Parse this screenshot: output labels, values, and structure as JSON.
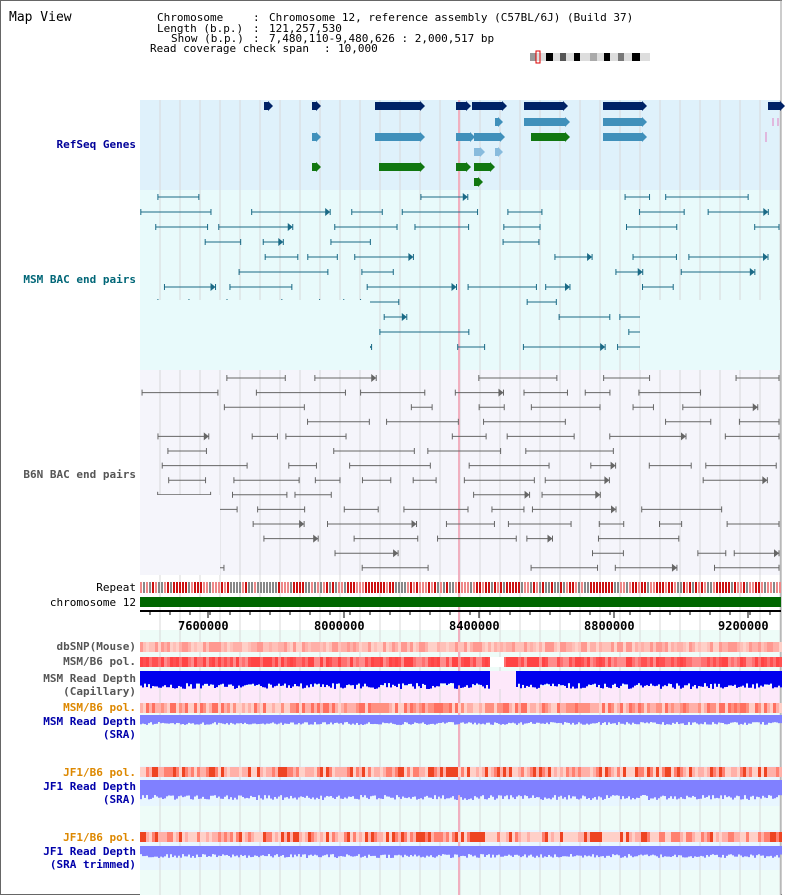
{
  "title": "Map View",
  "info": {
    "chromosome_label": "Chromosome",
    "chromosome_value": "Chromosome 12, reference assembly (C57BL/6J) (Build 37)",
    "length_label": "Length (b.p.)",
    "length_value": "121,257,530",
    "show_label": "Show (b.p.)",
    "show_value": "7,480,110-9,480,626 : 2,000,517 bp",
    "coverage_label": "Read coverage check span",
    "coverage_value": "10,000"
  },
  "tracks": {
    "refseq": "RefSeq Genes",
    "msm_bac": "MSM BAC end pairs",
    "b6n_bac": "B6N BAC end pairs",
    "repeat": "Repeat",
    "chromosome": "chromosome 12",
    "dbsnp": "dbSNP(Mouse)",
    "msm_b6_pol_1": "MSM/B6 pol.",
    "msm_depth_cap_1": "MSM Read Depth",
    "msm_depth_cap_2": "(Capillary)",
    "msm_b6_pol_2": "MSM/B6 pol.",
    "msm_depth_sra_1": "MSM Read Depth",
    "msm_depth_sra_2": "(SRA)",
    "jf1_b6_pol_1": "JF1/B6 pol.",
    "jf1_depth_sra_1": "JF1 Read Depth",
    "jf1_depth_sra_2": "(SRA)",
    "jf1_b6_pol_2": "JF1/B6 pol.",
    "jf1_depth_trim_1": "JF1 Read Depth",
    "jf1_depth_trim_2": "(SRA trimmed)"
  },
  "axis_ticks": [
    "7600000",
    "8000000",
    "8400000",
    "8800000",
    "9200000"
  ],
  "colors": {
    "refseq_label": "#000099",
    "msm_bac_label": "#006677",
    "b6n_bac_label": "#555555",
    "pol_label": "#dd8800",
    "depth_label": "#0000aa",
    "chromosome_bar": "#006600",
    "depth_capillary": "#0000ee",
    "depth_sra": "#8080ff"
  }
}
